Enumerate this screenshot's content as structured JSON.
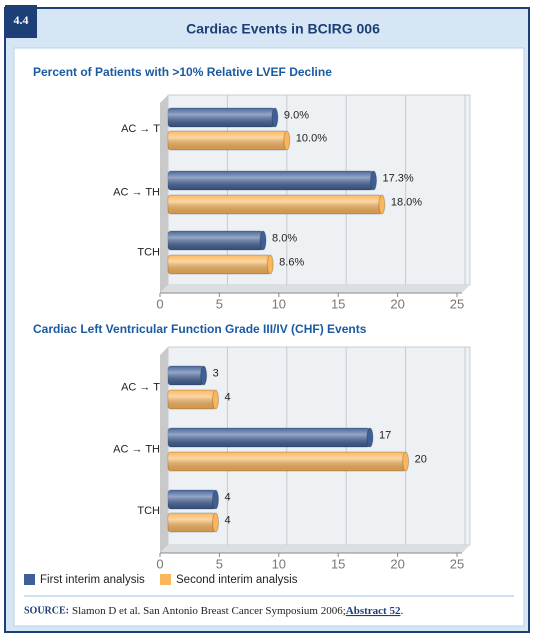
{
  "figure": {
    "number": "4.4",
    "title": "Cardiac Events in BCIRG 006"
  },
  "chart_data": [
    {
      "type": "bar",
      "title": "Percent of Patients with >10% Relative LVEF Decline",
      "categories": [
        "AC → T",
        "AC → TH",
        "TCH"
      ],
      "series": [
        {
          "name": "First interim analysis",
          "color": "#3f5f97",
          "values": [
            9.0,
            17.3,
            8.0
          ],
          "value_labels": [
            "9.0%",
            "17.3%",
            "8.0%"
          ]
        },
        {
          "name": "Second interim analysis",
          "color": "#fbb55a",
          "values": [
            10.0,
            18.0,
            8.6
          ],
          "value_labels": [
            "10.0%",
            "18.0%",
            "8.6%"
          ]
        }
      ],
      "xlim": [
        0,
        25
      ],
      "xticks": [
        0,
        5,
        10,
        15,
        20,
        25
      ],
      "grid": true
    },
    {
      "type": "bar",
      "title": "Cardiac Left Ventricular Function Grade III/IV (CHF) Events",
      "categories": [
        "AC → T",
        "AC → TH",
        "TCH"
      ],
      "series": [
        {
          "color": "#3f5f97",
          "values": [
            3,
            17,
            4
          ]
        },
        {
          "color": "#fbb55a",
          "values": [
            4,
            20,
            4
          ]
        }
      ],
      "xlim": [
        0,
        25
      ],
      "xticks": [
        0,
        5,
        10,
        15,
        20,
        25
      ],
      "grid": true
    }
  ],
  "source": {
    "label": "SOURCE:",
    "text": "Slamon D et al. San Antonio Breast Cancer Symposium 2006;",
    "link": "Abstract 52",
    "end": "."
  }
}
